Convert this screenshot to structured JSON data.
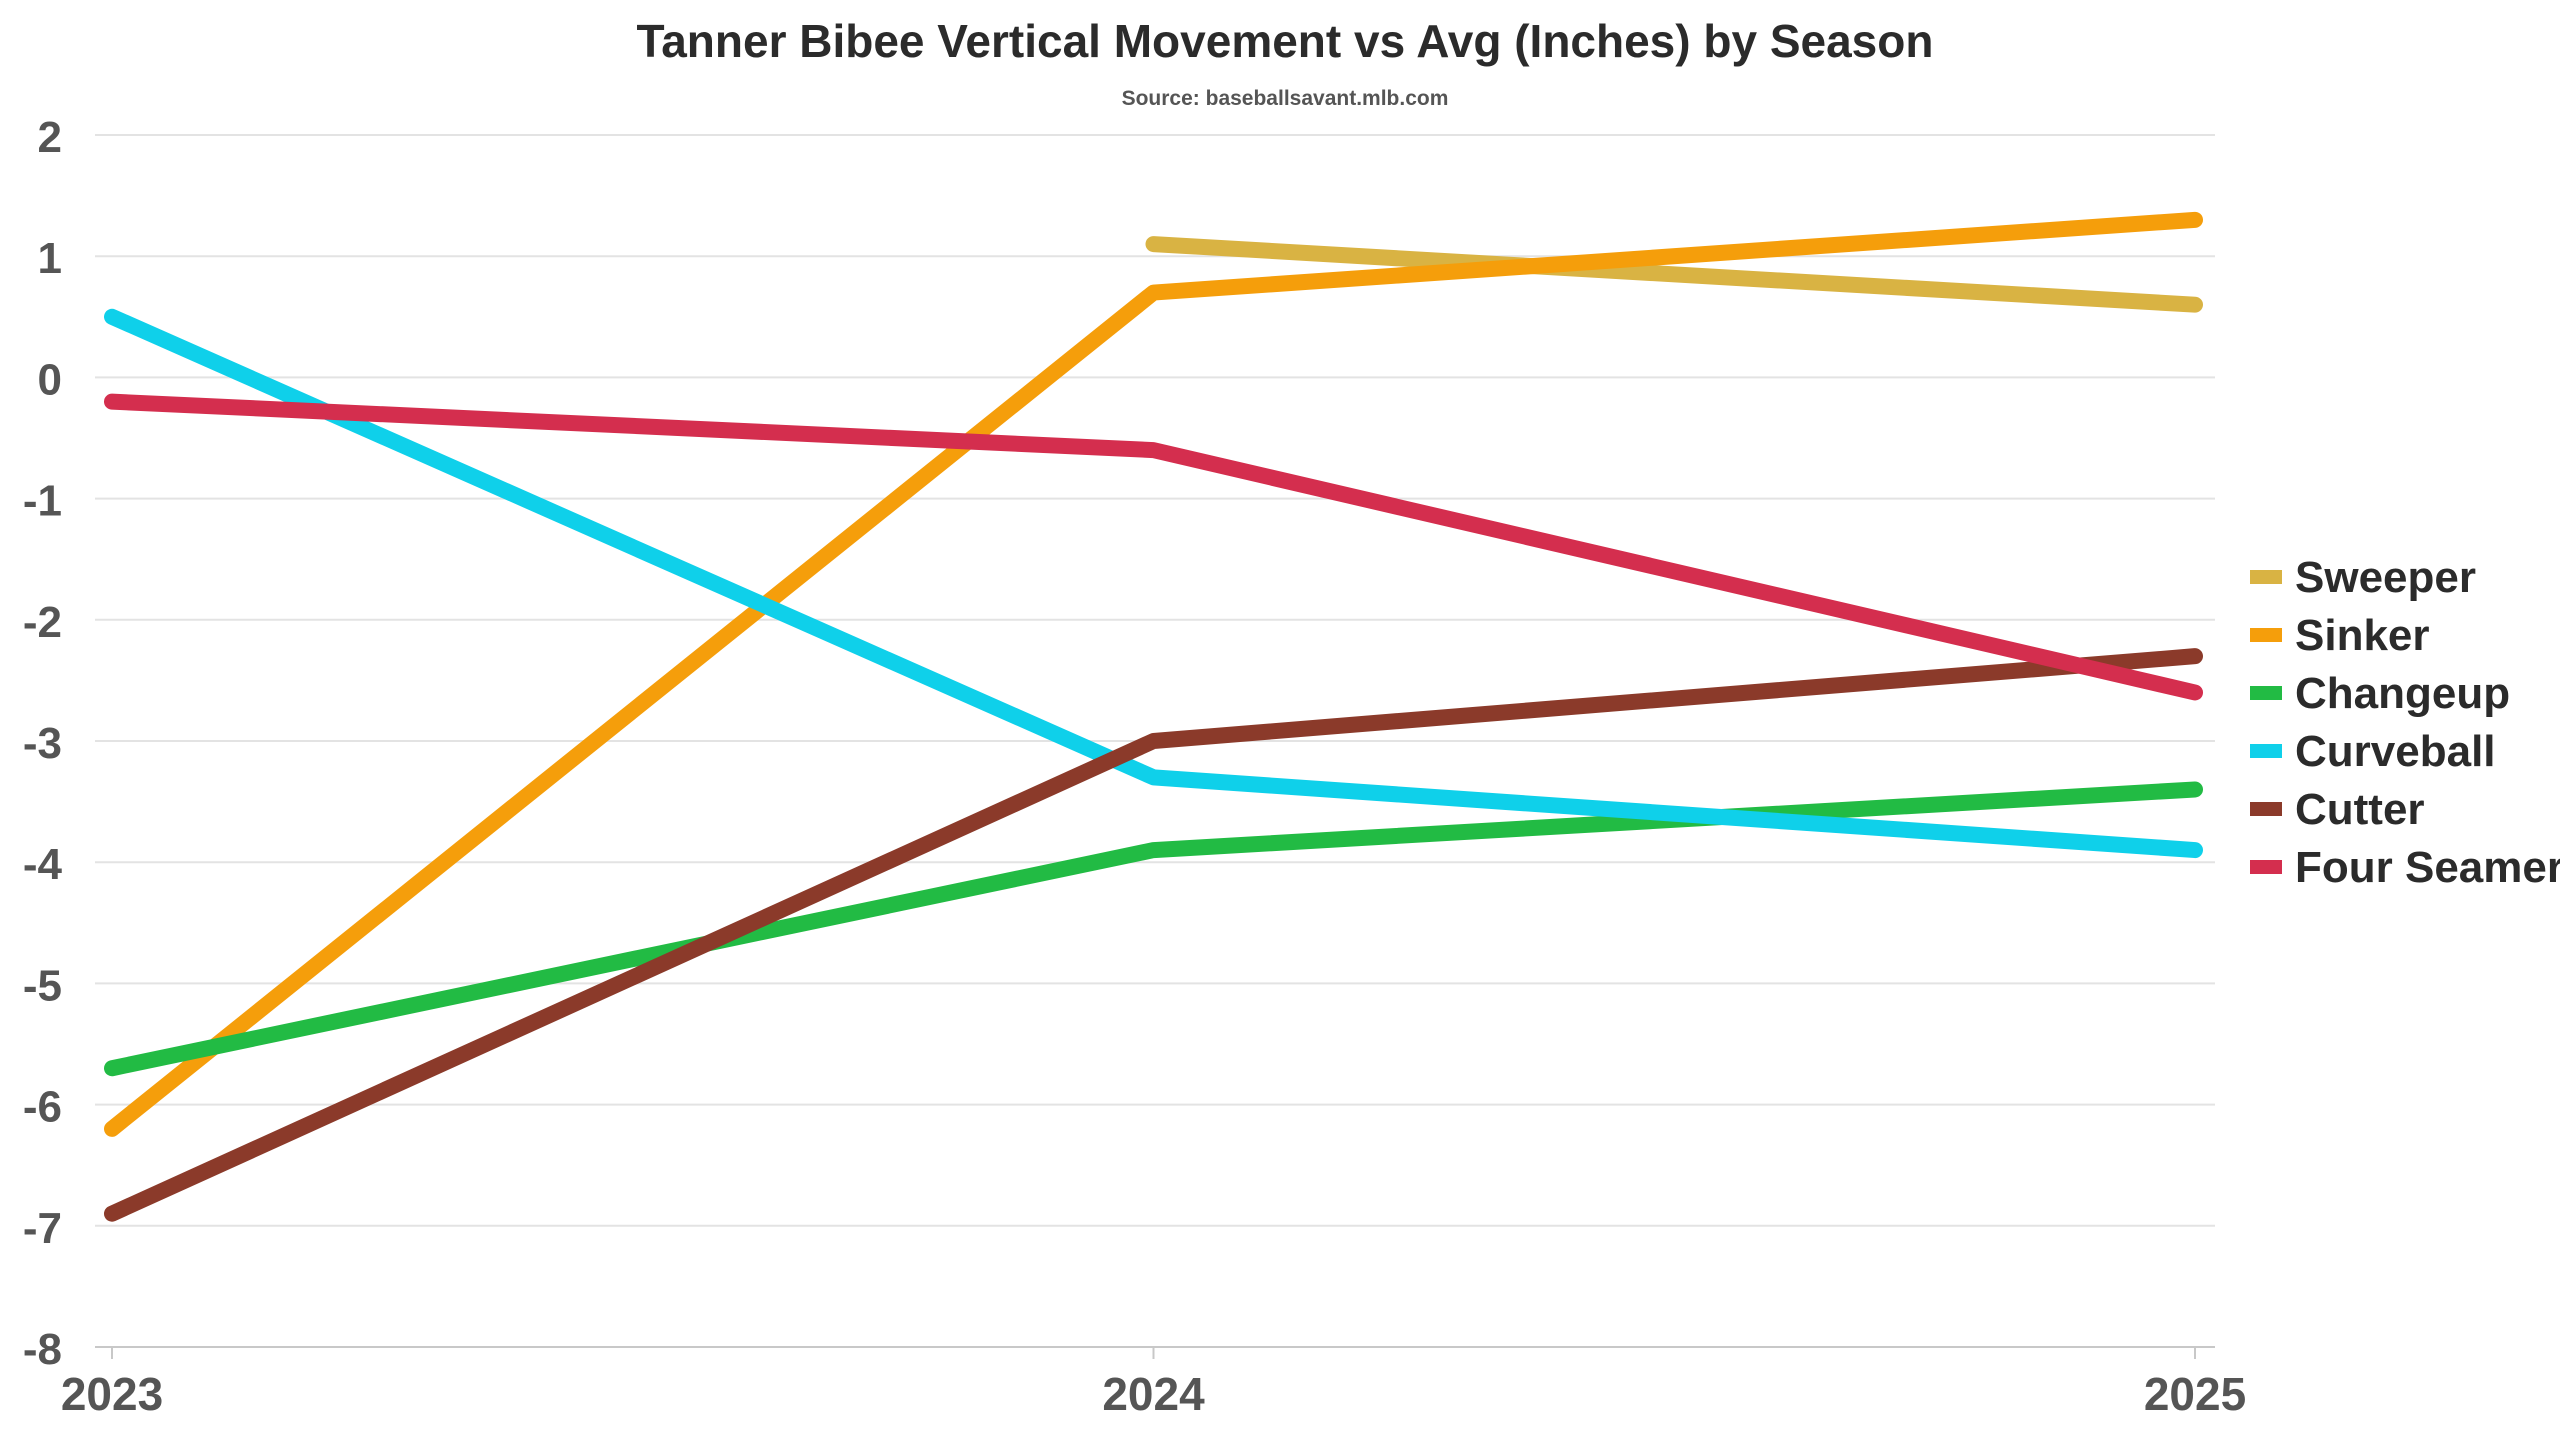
{
  "chart_data": {
    "type": "line",
    "title": "Tanner Bibee Vertical Movement vs Avg (Inches) by Season",
    "subtitle": "Source: baseballsavant.mlb.com",
    "xlabel": "",
    "ylabel": "",
    "x": [
      "2023",
      "2024",
      "2025"
    ],
    "ylim": [
      -8,
      2
    ],
    "yticks": [
      "2",
      "1",
      "0",
      "-1",
      "-2",
      "-3",
      "-4",
      "-5",
      "-6",
      "-7",
      "-8"
    ],
    "grid": true,
    "legend_position": "right",
    "series": [
      {
        "name": "Sweeper",
        "color": "#D9B343",
        "values": [
          null,
          1.1,
          0.6
        ]
      },
      {
        "name": "Sinker",
        "color": "#F59E0B",
        "values": [
          -6.2,
          0.7,
          1.3
        ]
      },
      {
        "name": "Changeup",
        "color": "#22BB44",
        "values": [
          -5.7,
          -3.9,
          -3.4
        ]
      },
      {
        "name": "Curveball",
        "color": "#0FD0EA",
        "values": [
          0.5,
          -3.3,
          -3.9
        ]
      },
      {
        "name": "Cutter",
        "color": "#8B3A2A",
        "values": [
          -6.9,
          -3.0,
          -2.3
        ]
      },
      {
        "name": "Four Seamer",
        "color": "#D42E4E",
        "values": [
          -0.2,
          -0.6,
          -2.6
        ]
      }
    ]
  }
}
